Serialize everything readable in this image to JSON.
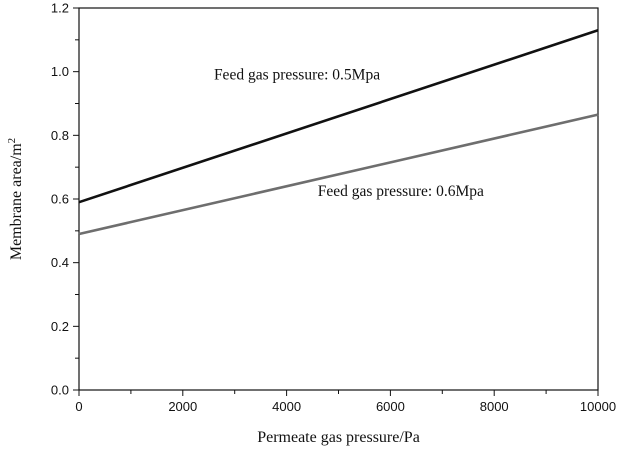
{
  "chart_data": {
    "type": "line",
    "xlabel": "Permeate gas pressure/Pa",
    "ylabel_main": "Membrane area/m",
    "ylabel_sup": "2",
    "xlim": [
      0,
      10000
    ],
    "ylim": [
      0,
      1.2
    ],
    "xticks": [
      "0",
      "2000",
      "4000",
      "6000",
      "8000",
      "10000"
    ],
    "yticks": [
      "0.0",
      "0.2",
      "0.4",
      "0.6",
      "0.8",
      "1.0",
      "1.2"
    ],
    "grid": false,
    "series": [
      {
        "name": "Feed gas pressure: 0.5Mpa",
        "color": "#111111",
        "x": [
          0,
          10000
        ],
        "y": [
          0.59,
          1.13
        ]
      },
      {
        "name": "Feed gas pressure: 0.6Mpa",
        "color": "#6e6e6e",
        "x": [
          0,
          10000
        ],
        "y": [
          0.49,
          0.865
        ]
      }
    ],
    "annotations": [
      {
        "text": "Feed gas pressure: 0.5Mpa",
        "x": 2600,
        "y": 0.975
      },
      {
        "text": "Feed gas pressure: 0.6Mpa",
        "x": 4600,
        "y": 0.61
      }
    ]
  }
}
